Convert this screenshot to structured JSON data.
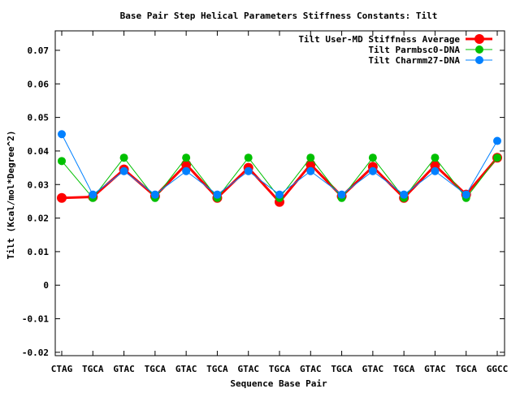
{
  "chart_data": {
    "type": "line",
    "title": "Base Pair Step Helical Parameters Stiffness Constants: Tilt",
    "xlabel": "Sequence Base Pair",
    "ylabel": "Tilt (Kcal/mol*Degree^2)",
    "categories": [
      "CTAG",
      "TGCA",
      "GTAC",
      "TGCA",
      "GTAC",
      "TGCA",
      "GTAC",
      "TGCA",
      "GTAC",
      "TGCA",
      "GTAC",
      "TGCA",
      "GTAC",
      "TGCA",
      "GGCC"
    ],
    "ylim": [
      -0.021,
      0.0758
    ],
    "yticks": [
      -0.02,
      -0.01,
      0,
      0.01,
      0.02,
      0.03,
      0.04,
      0.05,
      0.06,
      0.07
    ],
    "ytick_labels": [
      "-0.02",
      "-0.01",
      "0",
      "0.01",
      "0.02",
      "0.03",
      "0.04",
      "0.05",
      "0.06",
      "0.07"
    ],
    "legend_position": "top-right",
    "series": [
      {
        "name": "Tilt User-MD Stiffness Average",
        "color": "#ff0000",
        "values": [
          0.026,
          0.0263,
          0.0345,
          0.0265,
          0.036,
          0.026,
          0.035,
          0.0248,
          0.036,
          0.0265,
          0.0353,
          0.026,
          0.0357,
          0.027,
          0.038
        ]
      },
      {
        "name": "Tilt Parmbsc0-DNA",
        "color": "#00c000",
        "values": [
          0.037,
          0.026,
          0.038,
          0.026,
          0.038,
          0.026,
          0.038,
          0.026,
          0.038,
          0.026,
          0.038,
          0.026,
          0.038,
          0.026,
          0.038
        ]
      },
      {
        "name": "Tilt Charmm27-DNA",
        "color": "#0080ff",
        "values": [
          0.045,
          0.027,
          0.034,
          0.027,
          0.034,
          0.027,
          0.034,
          0.027,
          0.034,
          0.027,
          0.034,
          0.027,
          0.034,
          0.027,
          0.043
        ]
      }
    ]
  }
}
